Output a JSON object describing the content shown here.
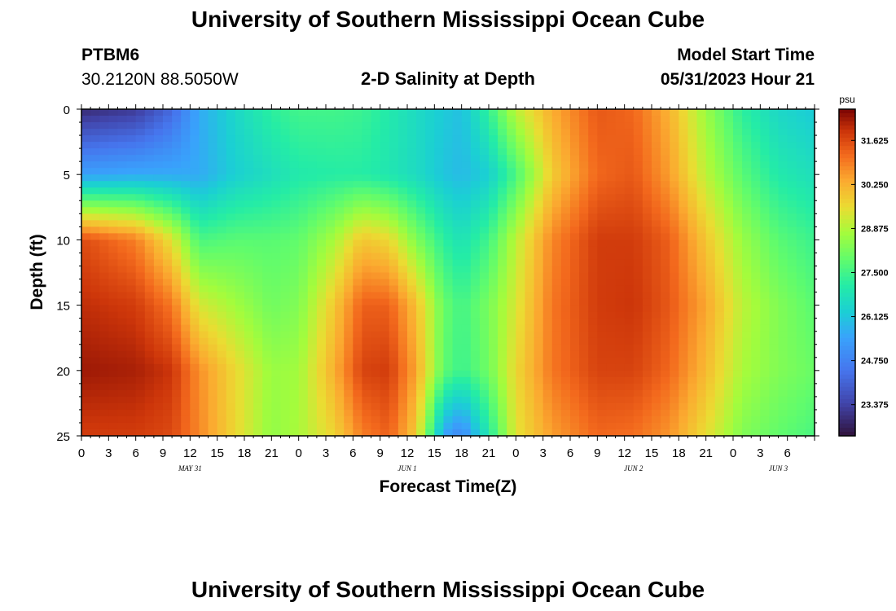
{
  "page": {
    "title": "University of Southern Mississippi Ocean Cube",
    "footer_title": "University of Southern Mississippi Ocean Cube",
    "station_id": "PTBM6",
    "station_coords": "30.2120N  88.5050W",
    "plot_title": "2-D Salinity at Depth",
    "model_start_label": "Model Start Time",
    "model_start_value": "05/31/2023 Hour 21"
  },
  "chart_data": {
    "type": "heatmap",
    "title": "2-D Salinity at Depth",
    "xlabel": "Forecast Time(Z)",
    "ylabel": "Depth (ft)",
    "colorbar_label": "psu",
    "colorbar_ticks": [
      "31.625",
      "30.250",
      "28.875",
      "27.500",
      "26.125",
      "24.750",
      "23.375"
    ],
    "zlim": [
      22.4,
      32.6
    ],
    "x_range_hours": [
      0,
      81
    ],
    "ylim": [
      0,
      25
    ],
    "y_ticks": [
      "0",
      "5",
      "10",
      "15",
      "20",
      "25"
    ],
    "x_tick_labels": [
      "0",
      "3",
      "6",
      "9",
      "12",
      "15",
      "18",
      "21",
      "0",
      "3",
      "6",
      "9",
      "12",
      "15",
      "18",
      "21",
      "0",
      "3",
      "6",
      "9",
      "12",
      "15",
      "18",
      "21",
      "0",
      "3",
      "6"
    ],
    "date_labels": [
      {
        "label": "MAY 31",
        "hour": 12
      },
      {
        "label": "JUN 1",
        "hour": 36
      },
      {
        "label": "JUN 2",
        "hour": 61
      },
      {
        "label": "JUN 3",
        "hour": 77
      }
    ],
    "salinity_profiles": {
      "depths_ft": [
        0,
        5,
        10,
        15,
        20,
        25
      ],
      "columns": [
        {
          "hour": 0,
          "values": [
            22.9,
            25.4,
            31.6,
            32.0,
            32.3,
            31.8
          ]
        },
        {
          "hour": 6,
          "values": [
            23.2,
            25.6,
            30.9,
            31.8,
            32.2,
            31.8
          ]
        },
        {
          "hour": 10,
          "values": [
            24.2,
            25.6,
            29.4,
            31.0,
            31.9,
            31.6
          ]
        },
        {
          "hour": 13,
          "values": [
            25.6,
            25.6,
            27.6,
            29.3,
            30.7,
            30.8
          ]
        },
        {
          "hour": 17,
          "values": [
            26.5,
            26.3,
            27.8,
            28.7,
            29.6,
            29.6
          ]
        },
        {
          "hour": 21,
          "values": [
            27.2,
            26.7,
            27.8,
            28.1,
            28.6,
            28.5
          ]
        },
        {
          "hour": 24,
          "values": [
            27.5,
            27.0,
            27.9,
            28.3,
            28.7,
            28.8
          ]
        },
        {
          "hour": 28,
          "values": [
            27.5,
            27.1,
            28.8,
            29.9,
            30.3,
            29.7
          ]
        },
        {
          "hour": 31,
          "values": [
            27.4,
            27.1,
            29.9,
            31.3,
            31.7,
            30.9
          ]
        },
        {
          "hour": 34,
          "values": [
            27.0,
            26.9,
            29.6,
            31.3,
            31.8,
            31.3
          ]
        },
        {
          "hour": 37,
          "values": [
            26.6,
            26.6,
            28.3,
            30.0,
            30.4,
            29.8
          ]
        },
        {
          "hour": 40,
          "values": [
            26.2,
            26.1,
            27.2,
            28.0,
            27.9,
            25.5
          ]
        },
        {
          "hour": 42,
          "values": [
            26.0,
            25.9,
            26.8,
            27.5,
            27.4,
            24.8
          ]
        },
        {
          "hour": 45,
          "values": [
            27.3,
            26.3,
            27.5,
            28.2,
            28.1,
            27.0
          ]
        },
        {
          "hour": 48,
          "values": [
            29.0,
            27.6,
            29.0,
            29.3,
            29.6,
            29.4
          ]
        },
        {
          "hour": 52,
          "values": [
            30.3,
            29.8,
            30.8,
            31.0,
            31.0,
            30.5
          ]
        },
        {
          "hour": 57,
          "values": [
            31.4,
            31.2,
            31.8,
            31.8,
            31.7,
            31.2
          ]
        },
        {
          "hour": 61,
          "values": [
            31.2,
            31.4,
            31.8,
            31.9,
            31.7,
            31.1
          ]
        },
        {
          "hour": 65,
          "values": [
            30.2,
            30.5,
            31.3,
            31.4,
            31.2,
            30.6
          ]
        },
        {
          "hour": 69,
          "values": [
            28.6,
            29.0,
            29.9,
            30.4,
            30.1,
            29.5
          ]
        },
        {
          "hour": 73,
          "values": [
            27.2,
            27.8,
            28.6,
            29.0,
            28.8,
            28.3
          ]
        },
        {
          "hour": 77,
          "values": [
            26.5,
            27.0,
            27.8,
            28.3,
            28.3,
            27.9
          ]
        },
        {
          "hour": 81,
          "values": [
            26.2,
            26.7,
            27.4,
            27.8,
            28.0,
            27.6
          ]
        }
      ]
    }
  }
}
